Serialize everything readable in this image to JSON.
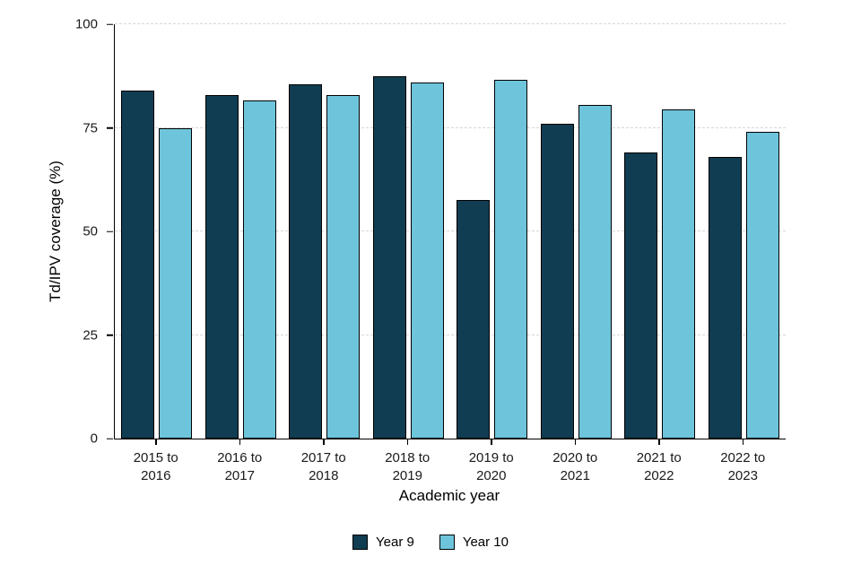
{
  "chart_data": {
    "type": "bar",
    "title": "",
    "xlabel": "Academic year",
    "ylabel": "Td/IPV coverage (%)",
    "ylim": [
      0,
      100
    ],
    "yticks": [
      0,
      25,
      50,
      75,
      100
    ],
    "grid": "horizontal dashed lines at y ticks",
    "legend_position": "bottom center",
    "categories": [
      "2015 to 2016",
      "2016 to 2017",
      "2017 to 2018",
      "2018 to 2019",
      "2019 to 2020",
      "2020 to 2021",
      "2021 to 2022",
      "2022 to 2023"
    ],
    "series": [
      {
        "name": "Year 9",
        "color": "#103d51",
        "values": [
          84,
          83,
          85.5,
          87.5,
          57.5,
          76,
          69,
          68
        ]
      },
      {
        "name": "Year 10",
        "color": "#6ec4db",
        "values": [
          75,
          81.5,
          83,
          86,
          86.5,
          80.5,
          79.5,
          74
        ]
      }
    ],
    "bar_border_color": "#000000"
  }
}
